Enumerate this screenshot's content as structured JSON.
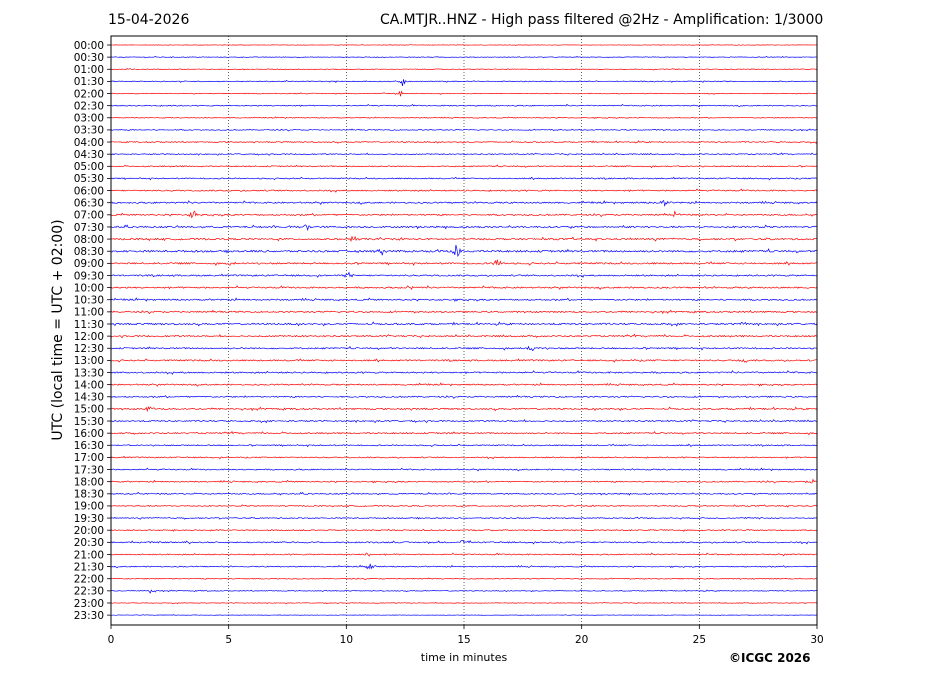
{
  "header": {
    "date": "15-04-2026",
    "station_title": "CA.MTJR..HNZ - High pass filtered @2Hz - Amplification: 1/3000"
  },
  "footer": {
    "copyright": "©ICGC 2026"
  },
  "chart_data": {
    "type": "line",
    "xlabel": "time in minutes",
    "ylabel": "UTC (local time = UTC + 02:00)",
    "xlim": [
      0,
      30
    ],
    "xticks": [
      0,
      5,
      10,
      15,
      20,
      25,
      30
    ],
    "grid": "vertical dotted lines at 5-minute intervals",
    "trace_colors": [
      "#ff0000",
      "#0000ff"
    ],
    "rows": [
      "00:00",
      "00:30",
      "01:00",
      "01:30",
      "02:00",
      "02:30",
      "03:00",
      "03:30",
      "04:00",
      "04:30",
      "05:00",
      "05:30",
      "06:00",
      "06:30",
      "07:00",
      "07:30",
      "08:00",
      "08:30",
      "09:00",
      "09:30",
      "10:00",
      "10:30",
      "11:00",
      "11:30",
      "12:00",
      "12:30",
      "13:00",
      "13:30",
      "14:00",
      "14:30",
      "15:00",
      "15:30",
      "16:00",
      "16:30",
      "17:00",
      "17:30",
      "18:00",
      "18:30",
      "19:00",
      "19:30",
      "20:00",
      "20:30",
      "21:00",
      "21:30",
      "22:00",
      "22:30",
      "23:00",
      "23:30"
    ],
    "row_noise_level": [
      0.3,
      0.4,
      0.5,
      0.6,
      0.5,
      0.7,
      0.5,
      0.6,
      0.7,
      0.7,
      0.8,
      0.8,
      0.9,
      1.0,
      1.0,
      1.1,
      1.1,
      1.3,
      1.1,
      1.0,
      1.0,
      1.0,
      1.0,
      1.1,
      1.0,
      1.0,
      1.0,
      1.0,
      0.9,
      0.9,
      1.0,
      0.9,
      0.9,
      0.8,
      0.8,
      0.8,
      0.8,
      0.8,
      0.7,
      0.7,
      0.8,
      0.9,
      0.8,
      0.7,
      0.6,
      0.5,
      0.4,
      0.3
    ],
    "events": [
      {
        "row": "01:30",
        "minute": 12.4,
        "amplitude": 5
      },
      {
        "row": "02:00",
        "minute": 12.3,
        "amplitude": 4
      },
      {
        "row": "06:30",
        "minute": 23.5,
        "amplitude": 4
      },
      {
        "row": "07:00",
        "minute": 3.5,
        "amplitude": 8
      },
      {
        "row": "07:00",
        "minute": 24.0,
        "amplitude": 4
      },
      {
        "row": "07:30",
        "minute": 8.3,
        "amplitude": 5
      },
      {
        "row": "08:00",
        "minute": 10.3,
        "amplitude": 4
      },
      {
        "row": "08:30",
        "minute": 11.5,
        "amplitude": 7
      },
      {
        "row": "08:30",
        "minute": 14.7,
        "amplitude": 9
      },
      {
        "row": "09:00",
        "minute": 16.4,
        "amplitude": 5
      },
      {
        "row": "09:00",
        "minute": 5.0,
        "amplitude": 4
      },
      {
        "row": "09:30",
        "minute": 10.1,
        "amplitude": 4
      },
      {
        "row": "10:00",
        "minute": 12.7,
        "amplitude": 3
      },
      {
        "row": "11:30",
        "minute": 26.9,
        "amplitude": 3
      },
      {
        "row": "12:30",
        "minute": 17.9,
        "amplitude": 4
      },
      {
        "row": "13:00",
        "minute": 26.9,
        "amplitude": 4
      },
      {
        "row": "15:00",
        "minute": 1.6,
        "amplitude": 4
      },
      {
        "row": "18:00",
        "minute": 29.8,
        "amplitude": 4
      },
      {
        "row": "20:30",
        "minute": 15.0,
        "amplitude": 4
      },
      {
        "row": "21:00",
        "minute": 10.9,
        "amplitude": 3
      },
      {
        "row": "21:30",
        "minute": 11.0,
        "amplitude": 5
      },
      {
        "row": "22:30",
        "minute": 1.7,
        "amplitude": 3
      }
    ]
  }
}
